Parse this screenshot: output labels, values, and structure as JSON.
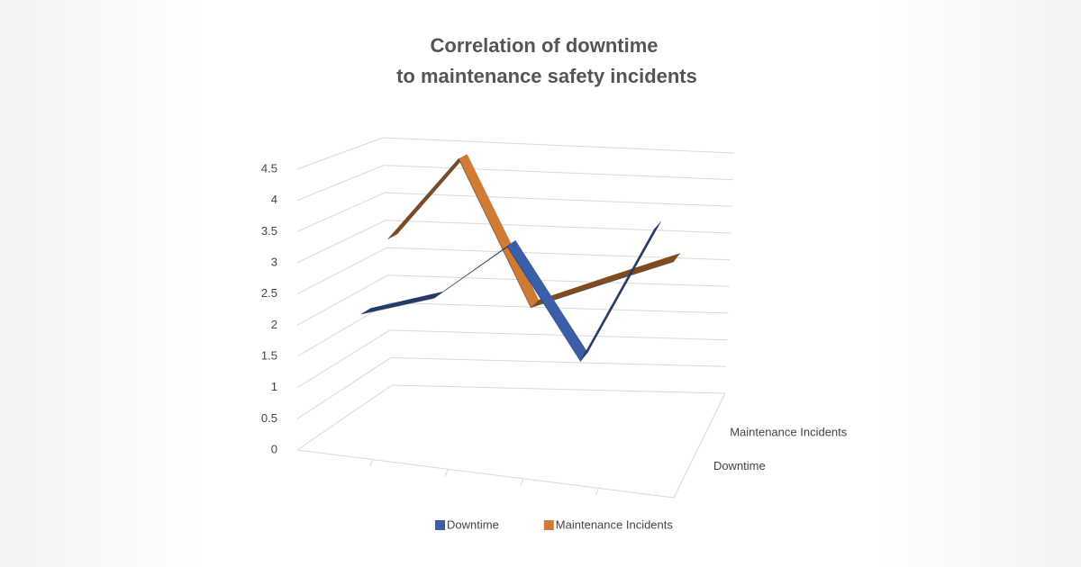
{
  "chart_data": {
    "type": "line3d",
    "title": [
      "Correlation of downtime",
      "to maintenance safety incidents"
    ],
    "categories": [
      null,
      null,
      null,
      null,
      null
    ],
    "series": [
      {
        "name": "Downtime",
        "color": "#3a5fa8",
        "values": [
          2,
          2.4,
          3.4,
          1.6,
          4
        ]
      },
      {
        "name": "Maintenance Incidents",
        "color": "#d07a34",
        "values": [
          3,
          4.5,
          2,
          2.5,
          3
        ]
      }
    ],
    "ylim": [
      0,
      4.5
    ],
    "yticks": [
      0,
      0.5,
      1,
      1.5,
      2,
      2.5,
      3,
      3.5,
      4,
      4.5
    ],
    "grid": true,
    "legend": "bottom"
  }
}
